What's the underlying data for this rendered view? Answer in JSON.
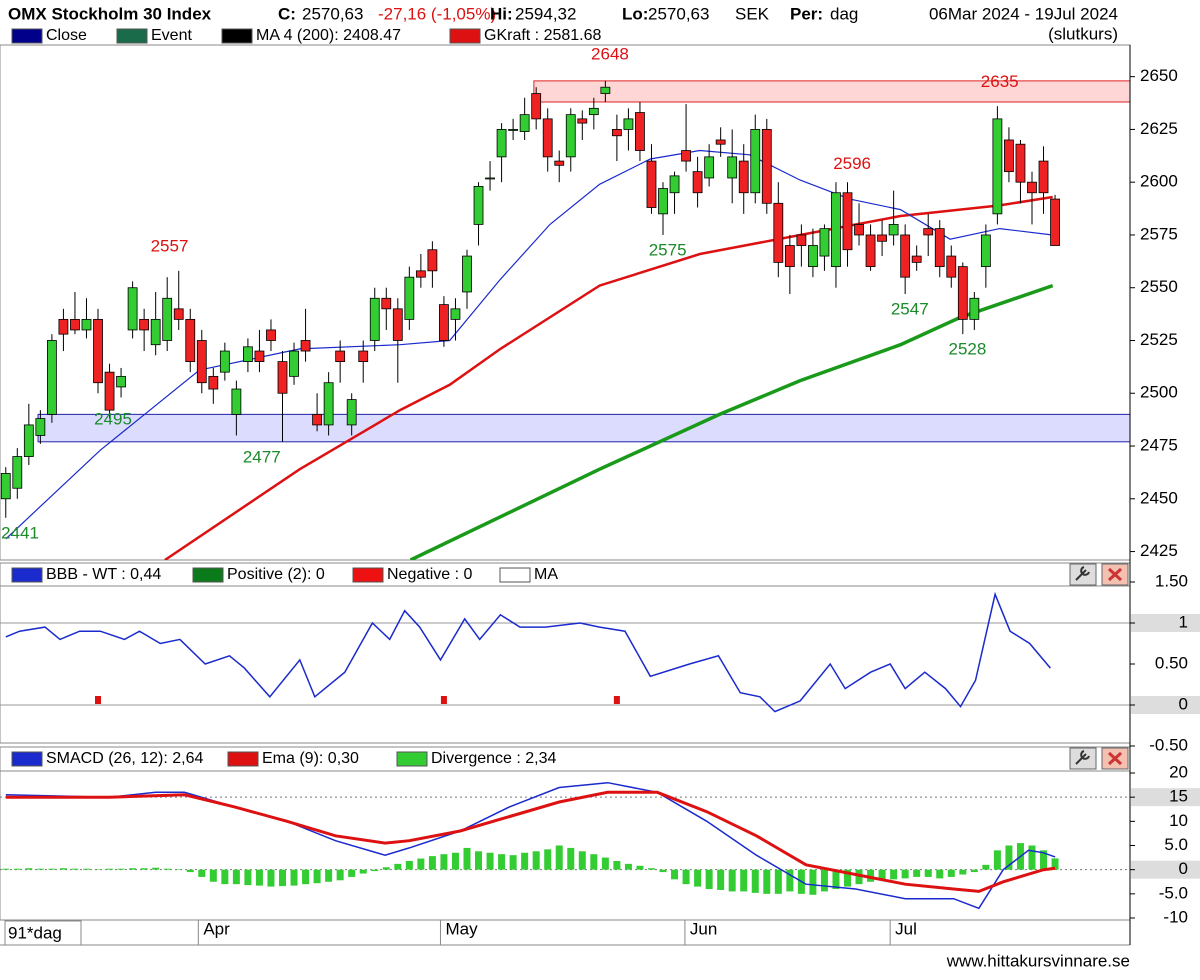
{
  "header": {
    "title": "OMX Stockholm 30 Index",
    "close_label": "C:",
    "close": "2570,63",
    "change": "-27,16 (-1,05%)",
    "hi_label": "Hi:",
    "hi": "2594,32",
    "lo_label": "Lo:",
    "lo": "2570,63",
    "currency": "SEK",
    "period_label": "Per:",
    "period": "dag",
    "date_range": "06Mar 2024 - 19Jul 2024",
    "price_type": "(slutkurs)"
  },
  "chart_data": [
    {
      "type": "candlestick",
      "xlim": [
        -0.5,
        97.5
      ],
      "ylim": [
        2421,
        2665
      ],
      "yticks": [
        2650,
        2625,
        2600,
        2575,
        2550,
        2525,
        2500,
        2475,
        2450,
        2425
      ],
      "legend": [
        {
          "name": "Close",
          "color": "#00008b"
        },
        {
          "name": "Event",
          "color": "#1a6b4a"
        }
      ],
      "up_color": "#33cc33",
      "down_color": "#ee2222",
      "ohlc": [
        [
          2450,
          2465,
          2441,
          2462
        ],
        [
          2455,
          2474,
          2450,
          2470
        ],
        [
          2470,
          2495,
          2466,
          2485
        ],
        [
          2480,
          2492,
          2476,
          2488
        ],
        [
          2490,
          2528,
          2486,
          2525
        ],
        [
          2535,
          2540,
          2520,
          2528
        ],
        [
          2535,
          2548,
          2528,
          2530
        ],
        [
          2530,
          2545,
          2526,
          2535
        ],
        [
          2535,
          2540,
          2500,
          2505
        ],
        [
          2510,
          2514,
          2488,
          2492
        ],
        [
          2503,
          2512,
          2498,
          2508
        ],
        [
          2530,
          2553,
          2526,
          2550
        ],
        [
          2535,
          2540,
          2520,
          2530
        ],
        [
          2523,
          2548,
          2518,
          2535
        ],
        [
          2525,
          2555,
          2520,
          2545
        ],
        [
          2540,
          2558,
          2530,
          2535
        ],
        [
          2535,
          2540,
          2510,
          2515
        ],
        [
          2525,
          2530,
          2500,
          2505
        ],
        [
          2508,
          2512,
          2495,
          2502
        ],
        [
          2510,
          2524,
          2506,
          2520
        ],
        [
          2490,
          2506,
          2480,
          2502
        ],
        [
          2515,
          2526,
          2510,
          2522
        ],
        [
          2520,
          2530,
          2510,
          2515
        ],
        [
          2530,
          2535,
          2520,
          2525
        ],
        [
          2515,
          2520,
          2477,
          2500
        ],
        [
          2508,
          2524,
          2504,
          2520
        ],
        [
          2525,
          2540,
          2515,
          2520
        ],
        [
          2490,
          2500,
          2482,
          2485
        ],
        [
          2485,
          2510,
          2480,
          2505
        ],
        [
          2520,
          2525,
          2505,
          2515
        ],
        [
          2485,
          2500,
          2480,
          2497
        ],
        [
          2520,
          2525,
          2505,
          2515
        ],
        [
          2525,
          2550,
          2520,
          2545
        ],
        [
          2545,
          2550,
          2530,
          2540
        ],
        [
          2540,
          2545,
          2505,
          2525
        ],
        [
          2535,
          2560,
          2530,
          2555
        ],
        [
          2558,
          2566,
          2550,
          2555
        ],
        [
          2568,
          2572,
          2550,
          2558
        ],
        [
          2542,
          2546,
          2522,
          2525
        ],
        [
          2535,
          2545,
          2525,
          2540
        ],
        [
          2548,
          2568,
          2540,
          2565
        ],
        [
          2580,
          2600,
          2570,
          2598
        ],
        [
          2602,
          2610,
          2596,
          2602
        ],
        [
          2612,
          2628,
          2600,
          2625
        ],
        [
          2625,
          2630,
          2620,
          2625
        ],
        [
          2624,
          2640,
          2620,
          2632
        ],
        [
          2642,
          2645,
          2625,
          2630
        ],
        [
          2630,
          2635,
          2605,
          2612
        ],
        [
          2610,
          2615,
          2600,
          2608
        ],
        [
          2612,
          2635,
          2605,
          2632
        ],
        [
          2630,
          2634,
          2620,
          2628
        ],
        [
          2632,
          2640,
          2625,
          2635
        ],
        [
          2642,
          2648,
          2638,
          2645
        ],
        [
          2625,
          2632,
          2610,
          2622
        ],
        [
          2625,
          2635,
          2615,
          2630
        ],
        [
          2633,
          2638,
          2610,
          2615
        ],
        [
          2610,
          2618,
          2585,
          2588
        ],
        [
          2585,
          2600,
          2575,
          2597
        ],
        [
          2595,
          2605,
          2585,
          2603
        ],
        [
          2615,
          2637,
          2605,
          2610
        ],
        [
          2605,
          2612,
          2588,
          2595
        ],
        [
          2602,
          2618,
          2598,
          2612
        ],
        [
          2620,
          2626,
          2612,
          2618
        ],
        [
          2602,
          2625,
          2590,
          2612
        ],
        [
          2610,
          2618,
          2585,
          2595
        ],
        [
          2595,
          2632,
          2590,
          2625
        ],
        [
          2625,
          2630,
          2585,
          2590
        ],
        [
          2590,
          2600,
          2555,
          2562
        ],
        [
          2570,
          2575,
          2547,
          2560
        ],
        [
          2575,
          2580,
          2560,
          2570
        ],
        [
          2560,
          2578,
          2555,
          2570
        ],
        [
          2565,
          2580,
          2558,
          2578
        ],
        [
          2560,
          2600,
          2550,
          2595
        ],
        [
          2595,
          2600,
          2560,
          2568
        ],
        [
          2580,
          2590,
          2570,
          2575
        ],
        [
          2575,
          2580,
          2558,
          2560
        ],
        [
          2575,
          2582,
          2565,
          2572
        ],
        [
          2575,
          2596,
          2570,
          2580
        ],
        [
          2575,
          2580,
          2547,
          2555
        ],
        [
          2565,
          2570,
          2558,
          2562
        ],
        [
          2578,
          2585,
          2565,
          2575
        ],
        [
          2578,
          2582,
          2555,
          2560
        ],
        [
          2565,
          2570,
          2550,
          2555
        ],
        [
          2560,
          2562,
          2528,
          2535
        ],
        [
          2535,
          2548,
          2530,
          2545
        ],
        [
          2560,
          2580,
          2550,
          2575
        ],
        [
          2585,
          2636,
          2580,
          2630
        ],
        [
          2620,
          2626,
          2600,
          2605
        ],
        [
          2618,
          2620,
          2590,
          2600
        ],
        [
          2600,
          2605,
          2580,
          2595
        ],
        [
          2610,
          2617,
          2585,
          2595
        ],
        [
          2592,
          2594,
          2570,
          2570
        ]
      ],
      "series": [
        {
          "name": "MA 4 (200): 2408.47",
          "color": "#1a9a1a",
          "legend_color": "#000000",
          "width": 3.5,
          "x": [
            35.1,
            51.5,
            61.9,
            68.9,
            77.6,
            82.8,
            90.8
          ],
          "values": [
            2421,
            2464,
            2490,
            2506,
            2523,
            2536,
            2551
          ]
        },
        {
          "name": "GKraft : 2581.68",
          "color": "#dd1111",
          "width": 2.5,
          "x": [
            13.8,
            25.5,
            34.2,
            38.5,
            42.9,
            51.5,
            60.2,
            68.9,
            77.6,
            86.2,
            90.8
          ],
          "values": [
            2421,
            2464,
            2492,
            2504,
            2521,
            2551,
            2566,
            2575,
            2584,
            2589,
            2593
          ]
        },
        {
          "color": "#1a2acc",
          "width": 1.2,
          "x": [
            0,
            8.2,
            16.8,
            25.5,
            34.2,
            38.5,
            42.9,
            47.2,
            51.5,
            55.9,
            60.2,
            64.5,
            68.9,
            73.2,
            77.6,
            81.9,
            86.2,
            90.8
          ],
          "values": [
            2431,
            2473,
            2511,
            2521,
            2523,
            2525,
            2554,
            2580,
            2599,
            2611,
            2615,
            2613,
            2601,
            2592,
            2587,
            2573,
            2578,
            2575
          ]
        }
      ],
      "zones": [
        {
          "from": 2638,
          "to": 2648,
          "x0": 45.8,
          "color": "#ffd6d6",
          "stroke": "#dd2222"
        },
        {
          "from": 2477,
          "to": 2490,
          "x0": 2.8,
          "color": "#dcdcff",
          "stroke": "#2222aa"
        }
      ],
      "annotations": [
        {
          "value": 2648,
          "x": 52.4,
          "kind": "high",
          "color": "#dd1111"
        },
        {
          "value": 2635,
          "x": 86.2,
          "kind": "high",
          "color": "#dd1111"
        },
        {
          "value": 2596,
          "x": 73.4,
          "kind": "high",
          "color": "#dd1111"
        },
        {
          "value": 2557,
          "x": 14.2,
          "kind": "high",
          "color": "#dd1111"
        },
        {
          "value": 2575,
          "x": 57.4,
          "kind": "low",
          "color": "#1a8a2a"
        },
        {
          "value": 2547,
          "x": 78.4,
          "kind": "low",
          "color": "#1a8a2a"
        },
        {
          "value": 2528,
          "x": 83.4,
          "kind": "low",
          "color": "#1a8a2a"
        },
        {
          "value": 2495,
          "x": 9.3,
          "kind": "low",
          "color": "#1a8a2a"
        },
        {
          "value": 2477,
          "x": 22.2,
          "kind": "low",
          "color": "#1a8a2a"
        },
        {
          "value": 2441,
          "x": 0.4,
          "kind": "low",
          "color": "#1a8a2a"
        }
      ]
    },
    {
      "type": "line",
      "ylim": [
        -0.5,
        1.5
      ],
      "yticks": [
        {
          "value": 1.5,
          "label": "1.50"
        },
        1,
        {
          "value": 0.5,
          "label": "0.50"
        },
        0,
        {
          "value": -0.5,
          "label": "-0.50"
        }
      ],
      "grid_values": [
        1,
        0
      ],
      "grid_style": "solid",
      "series": [
        {
          "name": "BBB - WT : 0,44",
          "color": "#1a2acc",
          "x": [
            0,
            1.2,
            3.4,
            4.7,
            6.4,
            8.2,
            10.3,
            11.6,
            13.4,
            15.1,
            17.3,
            19.4,
            20.7,
            22.9,
            25.5,
            26.8,
            29.4,
            31.8,
            33.3,
            34.6,
            35.9,
            37.7,
            39.8,
            41.1,
            42.9,
            44.6,
            46.8,
            49.8,
            51.5,
            53.7,
            55.9,
            59.3,
            61.8,
            63.7,
            65.4,
            66.7,
            68.9,
            71.5,
            72.8,
            75,
            76.7,
            78,
            79.7,
            81.5,
            82.8,
            84.1,
            85.8,
            87.1,
            88.8,
            90.6
          ],
          "values": [
            0.83,
            0.9,
            0.95,
            0.8,
            0.9,
            0.9,
            0.8,
            0.9,
            0.75,
            0.8,
            0.5,
            0.6,
            0.45,
            0.1,
            0.55,
            0.1,
            0.4,
            1.0,
            0.8,
            1.15,
            0.95,
            0.55,
            1.05,
            0.8,
            1.1,
            0.95,
            0.95,
            1.0,
            0.95,
            0.9,
            0.35,
            0.5,
            0.6,
            0.15,
            0.1,
            -0.08,
            0.05,
            0.5,
            0.2,
            0.4,
            0.5,
            0.2,
            0.4,
            0.2,
            -0.02,
            0.3,
            1.35,
            0.9,
            0.75,
            0.45
          ]
        }
      ],
      "legend": [
        {
          "name": "Positive (2): 0",
          "color": "#0a7a1a"
        },
        {
          "name": "Negative : 0",
          "color": "#ee1111"
        },
        {
          "name": "MA",
          "color": "#ffffff"
        }
      ],
      "signals": [
        8,
        38,
        53
      ],
      "signal_color": "#dd1111"
    },
    {
      "type": "macd",
      "ylim": [
        -10,
        20
      ],
      "yticks": [
        20,
        15,
        10,
        {
          "value": 5,
          "label": "5.0"
        },
        0,
        {
          "value": -5,
          "label": "-5.0"
        },
        -10
      ],
      "grid_values": [
        15,
        0
      ],
      "grid_style": "dotted",
      "xticks": [
        {
          "value": 16.7,
          "label": "Apr"
        },
        {
          "value": 37.7,
          "label": "May"
        },
        {
          "value": 58.9,
          "label": "Jun"
        },
        {
          "value": 76.7,
          "label": "Jul"
        }
      ],
      "series": [
        {
          "name": "SMACD (26, 12): 2,64",
          "color": "#1a2acc",
          "width": 1.5,
          "x": [
            0,
            9,
            13,
            15.5,
            19.8,
            24.4,
            28.6,
            32.9,
            35,
            39.4,
            43.7,
            48,
            52.2,
            56.5,
            60.8,
            65.1,
            69.4,
            73.7,
            78,
            82.2,
            84.4,
            86.5,
            88.7,
            90,
            91
          ],
          "values": [
            15.5,
            15,
            16,
            16,
            13,
            10,
            6,
            3,
            4.5,
            8,
            13,
            17,
            18,
            16,
            10,
            3,
            -3,
            -4,
            -6,
            -6,
            -8,
            0,
            4,
            3.5,
            2.64
          ]
        },
        {
          "name": "Ema (9): 0,30",
          "color": "#dd1111",
          "width": 3,
          "x": [
            0,
            9,
            15.5,
            19.8,
            24.4,
            28.6,
            32.9,
            35,
            39.4,
            43.7,
            48,
            52.2,
            56.5,
            60.8,
            65.1,
            69.4,
            73.7,
            78,
            82.2,
            84.4,
            86.5,
            90,
            91
          ],
          "values": [
            15,
            15,
            15.5,
            13,
            10,
            7,
            5.5,
            6,
            8,
            11,
            14,
            16,
            16,
            12,
            7,
            1,
            -1,
            -3,
            -4,
            -4.5,
            -2.5,
            0,
            0.3
          ]
        },
        {
          "name": "Divergence : 2,34",
          "color": "#33cc33",
          "kind": "bar",
          "values": [
            0.2,
            0.2,
            0.3,
            0.2,
            0.2,
            0.3,
            0.2,
            0.2,
            0.1,
            0.2,
            0.2,
            0.3,
            0.3,
            0.4,
            0.2,
            0.1,
            -0.5,
            -1.5,
            -2.5,
            -3,
            -3,
            -3.2,
            -3.3,
            -3.5,
            -3.4,
            -3.3,
            -3,
            -2.8,
            -2.5,
            -2.2,
            -1.5,
            -0.8,
            -0.3,
            0.5,
            1.2,
            1.8,
            2.3,
            2.8,
            3.2,
            3.5,
            4.5,
            3.8,
            3.5,
            3.2,
            3,
            3.5,
            3.8,
            4.2,
            5,
            4.5,
            3.8,
            3.2,
            2.5,
            1.8,
            1.2,
            0.8,
            0.3,
            -0.5,
            -2,
            -3,
            -3.5,
            -4,
            -4.2,
            -4.5,
            -4.5,
            -4.8,
            -5,
            -5,
            -4.5,
            -5,
            -5.2,
            -4.5,
            -4,
            -3.5,
            -3,
            -2.5,
            -2,
            -2,
            -1.8,
            -1.5,
            -1.5,
            -1.8,
            -1.5,
            -1,
            -0.5,
            1,
            4,
            5,
            5.5,
            5,
            4,
            2.34
          ]
        }
      ]
    }
  ],
  "footer": {
    "span": "91*dag",
    "site": "www.hittakursvinnare.se"
  }
}
